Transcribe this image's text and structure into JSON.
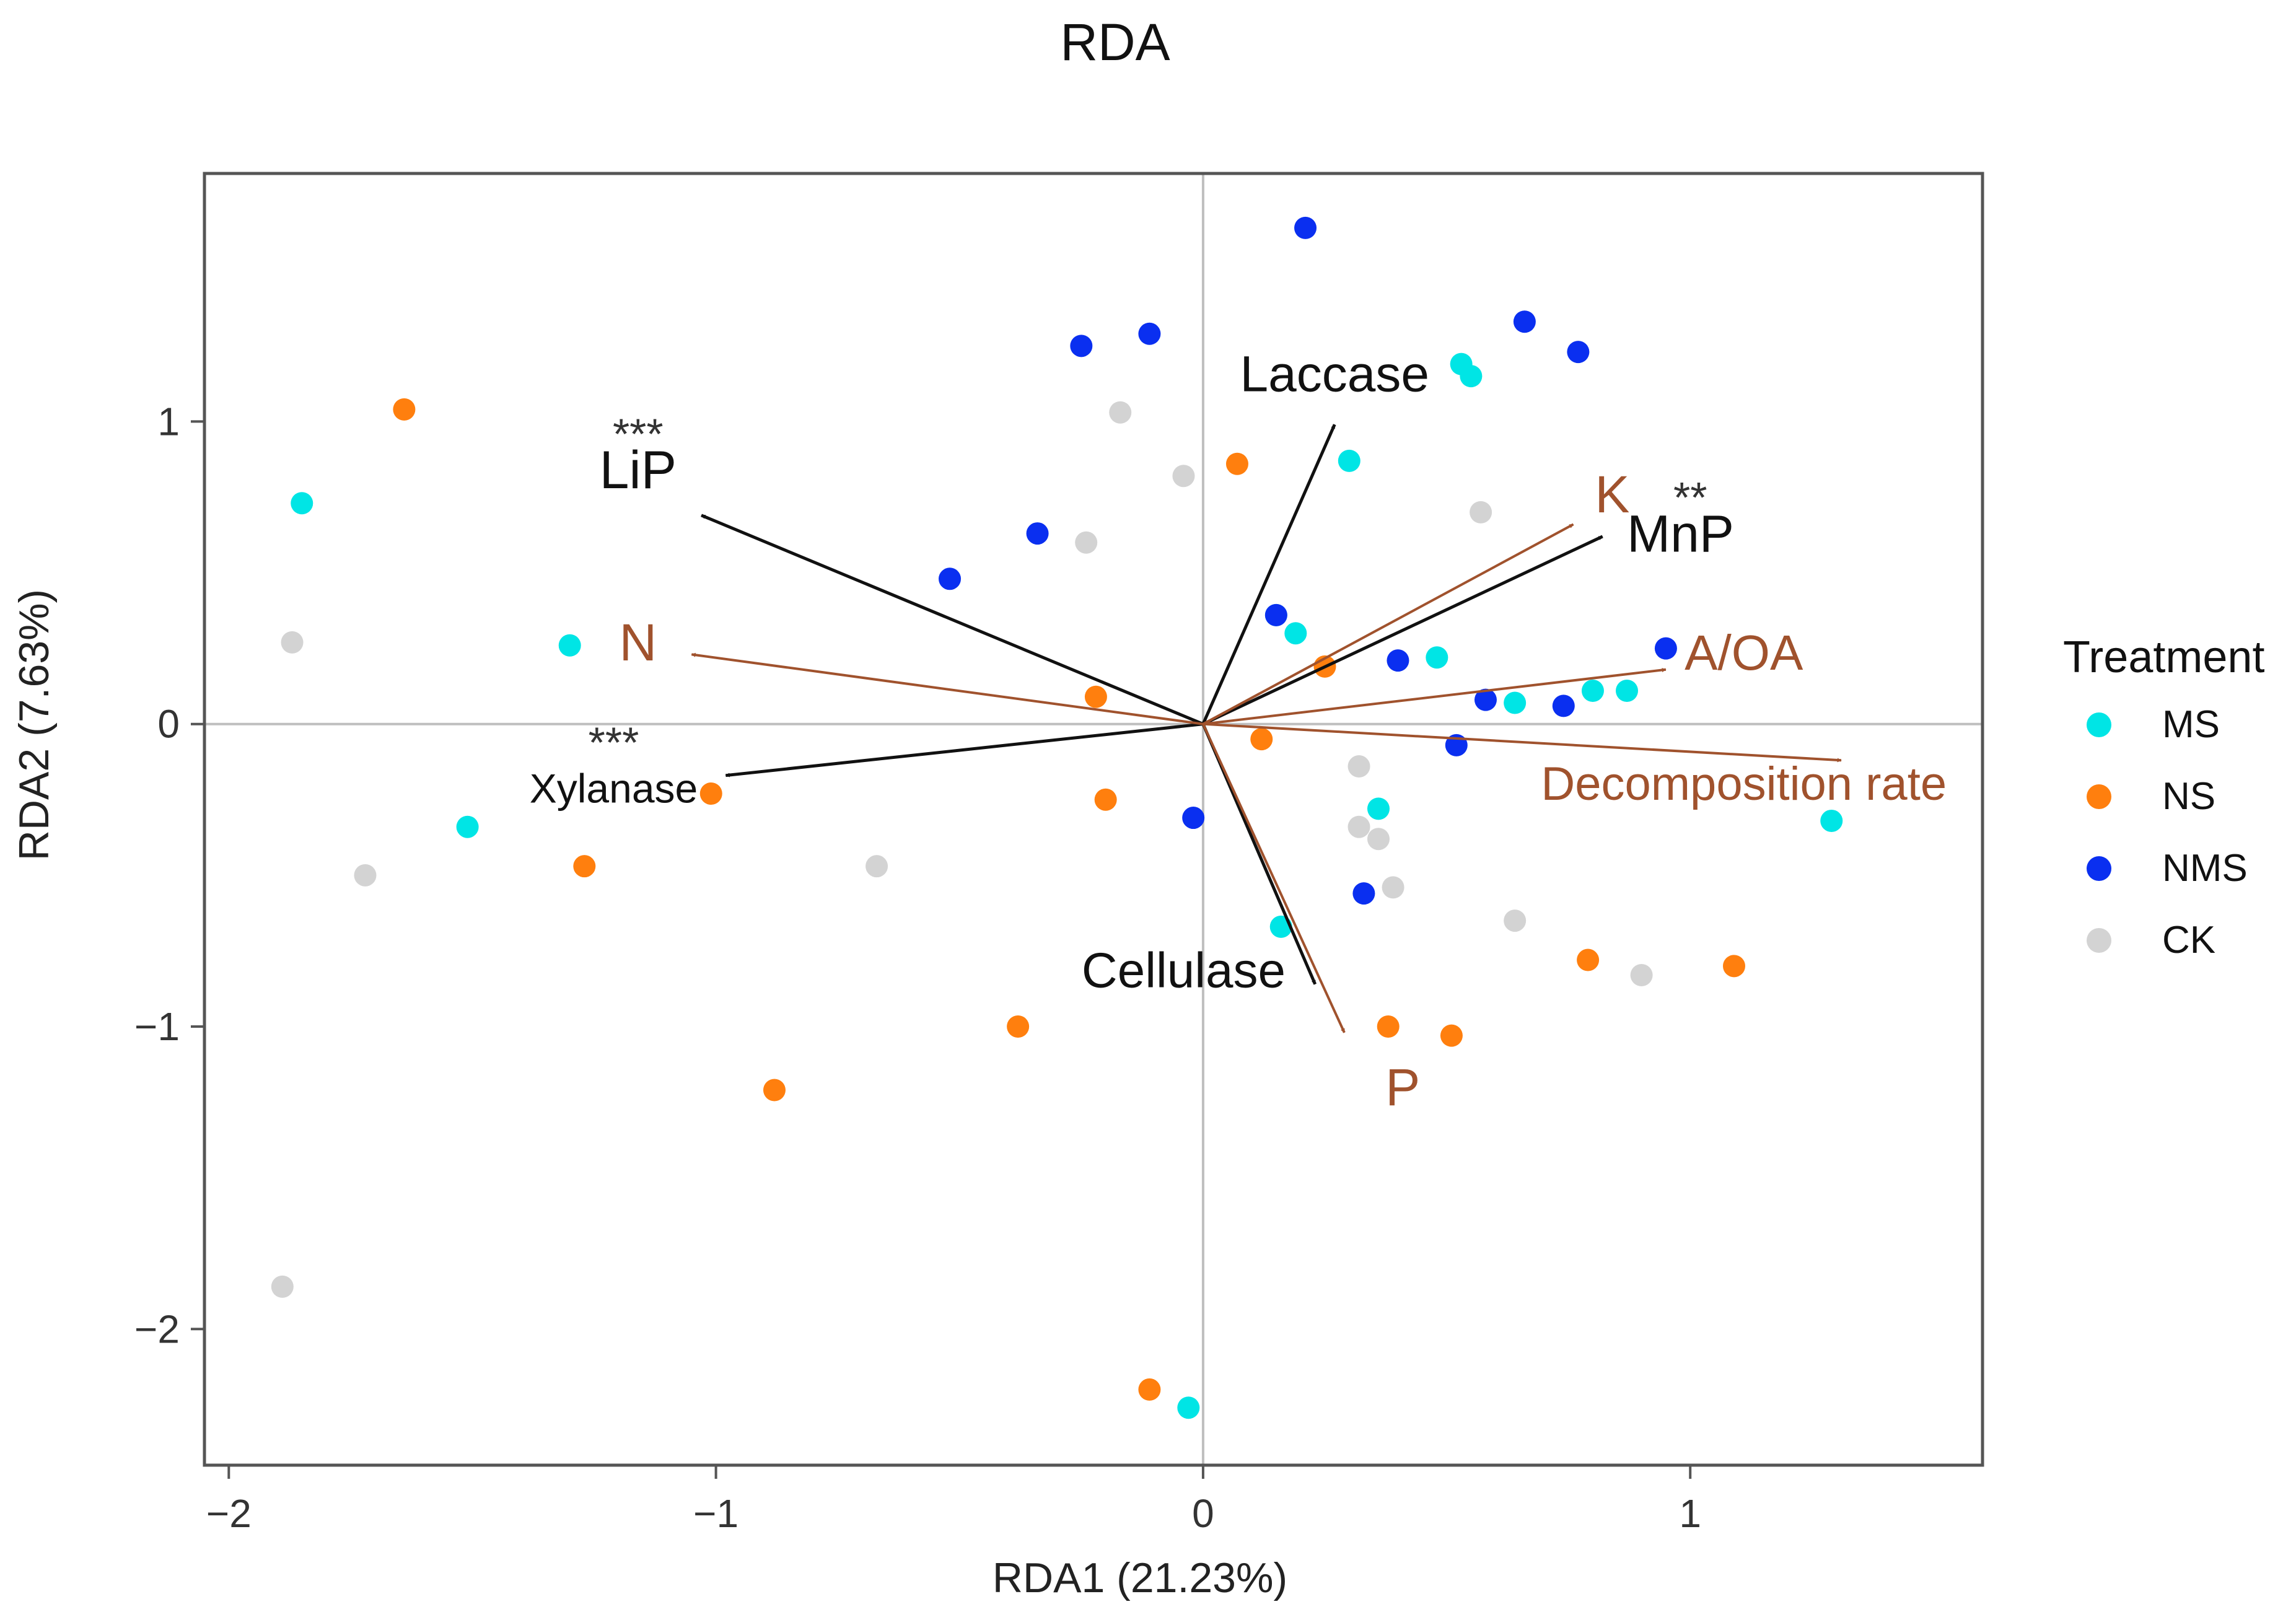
{
  "chart_data": {
    "type": "scatter",
    "title": "RDA",
    "xlabel": "RDA1 (21.23%)",
    "ylabel": "RDA2 (7.63%)",
    "xlim": [
      -2.05,
      1.6
    ],
    "ylim": [
      -2.45,
      1.82
    ],
    "xticks": [
      {
        "value": -2,
        "label": "−2"
      },
      {
        "value": -1,
        "label": "−1"
      },
      {
        "value": 0,
        "label": "0"
      },
      {
        "value": 1,
        "label": "1"
      }
    ],
    "yticks": [
      {
        "value": 1,
        "label": "1"
      },
      {
        "value": 0,
        "label": "0"
      },
      {
        "value": -1,
        "label": "−1"
      },
      {
        "value": -2,
        "label": "−2"
      }
    ],
    "legend": {
      "title": "Treatment",
      "position": "right",
      "entries": [
        {
          "name": "MS",
          "color": "#00e5e5"
        },
        {
          "name": "NS",
          "color": "#ff7f0e"
        },
        {
          "name": "NMS",
          "color": "#0a2ff0"
        },
        {
          "name": "CK",
          "color": "#d3d3d3"
        }
      ]
    },
    "series": [
      {
        "name": "MS",
        "color": "#00e5e5",
        "points": [
          [
            -1.85,
            0.73
          ],
          [
            -1.3,
            0.26
          ],
          [
            -1.51,
            -0.34
          ],
          [
            0.3,
            0.87
          ],
          [
            0.53,
            1.19
          ],
          [
            0.55,
            1.15
          ],
          [
            0.15,
            0.36
          ],
          [
            0.19,
            0.3
          ],
          [
            0.48,
            0.22
          ],
          [
            0.64,
            0.07
          ],
          [
            0.8,
            0.11
          ],
          [
            0.87,
            0.11
          ],
          [
            0.36,
            -0.28
          ],
          [
            0.16,
            -0.67
          ],
          [
            1.29,
            -0.32
          ],
          [
            -0.03,
            -2.26
          ]
        ]
      },
      {
        "name": "NS",
        "color": "#ff7f0e",
        "points": [
          [
            -1.64,
            1.04
          ],
          [
            0.07,
            0.86
          ],
          [
            -0.22,
            0.09
          ],
          [
            0.25,
            0.19
          ],
          [
            0.12,
            -0.05
          ],
          [
            -1.01,
            -0.23
          ],
          [
            -0.2,
            -0.25
          ],
          [
            -1.27,
            -0.47
          ],
          [
            0.79,
            -0.78
          ],
          [
            1.09,
            -0.8
          ],
          [
            -0.38,
            -1.0
          ],
          [
            0.38,
            -1.0
          ],
          [
            0.51,
            -1.03
          ],
          [
            -0.88,
            -1.21
          ],
          [
            -0.11,
            -2.2
          ]
        ]
      },
      {
        "name": "NMS",
        "color": "#0a2ff0",
        "points": [
          [
            0.21,
            1.64
          ],
          [
            -0.25,
            1.25
          ],
          [
            -0.11,
            1.29
          ],
          [
            0.66,
            1.33
          ],
          [
            0.77,
            1.23
          ],
          [
            -0.34,
            0.63
          ],
          [
            -0.52,
            0.48
          ],
          [
            0.15,
            0.36
          ],
          [
            0.4,
            0.21
          ],
          [
            0.95,
            0.25
          ],
          [
            0.58,
            0.08
          ],
          [
            0.74,
            0.06
          ],
          [
            0.52,
            -0.07
          ],
          [
            -0.02,
            -0.31
          ],
          [
            0.33,
            -0.56
          ]
        ]
      },
      {
        "name": "CK",
        "color": "#d3d3d3",
        "points": [
          [
            -0.17,
            1.03
          ],
          [
            -0.04,
            0.82
          ],
          [
            -0.24,
            0.6
          ],
          [
            0.57,
            0.7
          ],
          [
            -1.87,
            0.27
          ],
          [
            -1.72,
            -0.5
          ],
          [
            -0.67,
            -0.47
          ],
          [
            0.32,
            -0.14
          ],
          [
            0.32,
            -0.34
          ],
          [
            0.36,
            -0.38
          ],
          [
            0.39,
            -0.54
          ],
          [
            0.64,
            -0.65
          ],
          [
            0.9,
            -0.83
          ],
          [
            -1.89,
            -1.86
          ]
        ]
      }
    ],
    "vectors": [
      {
        "name": "LiP",
        "label": "LiP",
        "stars": "***",
        "color": "#111111",
        "end": [
          -1.03,
          0.69
        ],
        "label_at": [
          -1.16,
          0.78
        ],
        "stars_at": [
          -1.16,
          0.91
        ],
        "font": 86
      },
      {
        "name": "Laccase",
        "label": "Laccase",
        "stars": "",
        "color": "#111111",
        "end": [
          0.27,
          0.99
        ],
        "label_at": [
          0.27,
          1.1
        ],
        "font": 82
      },
      {
        "name": "MnP",
        "label": "MnP",
        "stars": "**",
        "color": "#111111",
        "end": [
          0.82,
          0.62
        ],
        "label_at": [
          0.98,
          0.57
        ],
        "stars_at": [
          1.0,
          0.7
        ],
        "font": 84
      },
      {
        "name": "Xylanase",
        "label": "Xylanase",
        "stars": "***",
        "color": "#111111",
        "end": [
          -0.98,
          -0.17
        ],
        "label_at": [
          -1.21,
          -0.26
        ],
        "stars_at": [
          -1.21,
          -0.11
        ],
        "font": 66
      },
      {
        "name": "Cellulase",
        "label": "Cellulase",
        "stars": "",
        "color": "#111111",
        "end": [
          0.23,
          -0.86
        ],
        "label_at": [
          -0.04,
          -0.87
        ],
        "font": 80
      },
      {
        "name": "K",
        "label": "K",
        "stars": "",
        "color": "#a0522d",
        "end": [
          0.76,
          0.66
        ],
        "label_at": [
          0.84,
          0.7
        ],
        "font": 84
      },
      {
        "name": "N",
        "label": "N",
        "stars": "",
        "color": "#a0522d",
        "end": [
          -1.05,
          0.23
        ],
        "label_at": [
          -1.16,
          0.21
        ],
        "font": 84
      },
      {
        "name": "A/OA",
        "label": "A/OA",
        "stars": "",
        "color": "#a0522d",
        "end": [
          0.95,
          0.18
        ],
        "label_at": [
          1.11,
          0.18
        ],
        "font": 80
      },
      {
        "name": "Decomposition rate",
        "label": "Decomposition rate",
        "stars": "",
        "color": "#a0522d",
        "end": [
          1.31,
          -0.12
        ],
        "label_at": [
          1.11,
          -0.25
        ],
        "font": 76
      },
      {
        "name": "P",
        "label": "P",
        "stars": "",
        "color": "#a0522d",
        "end": [
          0.29,
          -1.02
        ],
        "label_at": [
          0.41,
          -1.26
        ],
        "font": 84
      }
    ]
  }
}
